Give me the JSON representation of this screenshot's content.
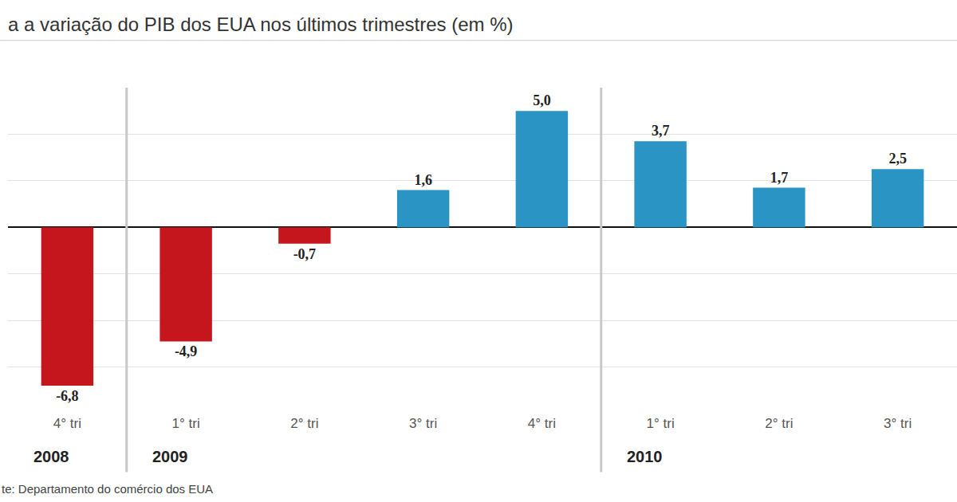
{
  "chart_data": {
    "type": "bar",
    "title": "a a variação do PIB dos EUA nos últimos trimestres (em %)",
    "categories": [
      "4° tri",
      "1° tri",
      "2° tri",
      "3° tri",
      "4° tri",
      "1° tri",
      "2° tri",
      "3° tri"
    ],
    "groups": [
      {
        "label": "2008",
        "count": 1
      },
      {
        "label": "2009",
        "count": 4
      },
      {
        "label": "2010",
        "count": 3
      }
    ],
    "values": [
      -6.8,
      -4.9,
      -0.7,
      1.6,
      5.0,
      3.7,
      1.7,
      2.5
    ],
    "value_labels": [
      "-6,8",
      "-4,9",
      "-0,7",
      "1,6",
      "5,0",
      "3,7",
      "1,7",
      "2,5"
    ],
    "colors": [
      "#c4161c",
      "#c4161c",
      "#c4161c",
      "#2a95c4",
      "#2a95c4",
      "#2a95c4",
      "#2a95c4",
      "#2a95c4"
    ],
    "ylim": [
      -8,
      6
    ],
    "yticks": [
      -8,
      -6,
      -4,
      -2,
      0,
      2,
      4,
      6
    ],
    "grid": true,
    "data_labels": true,
    "tick_labels": "x",
    "source": "te: Departamento do comércio dos EUA"
  }
}
